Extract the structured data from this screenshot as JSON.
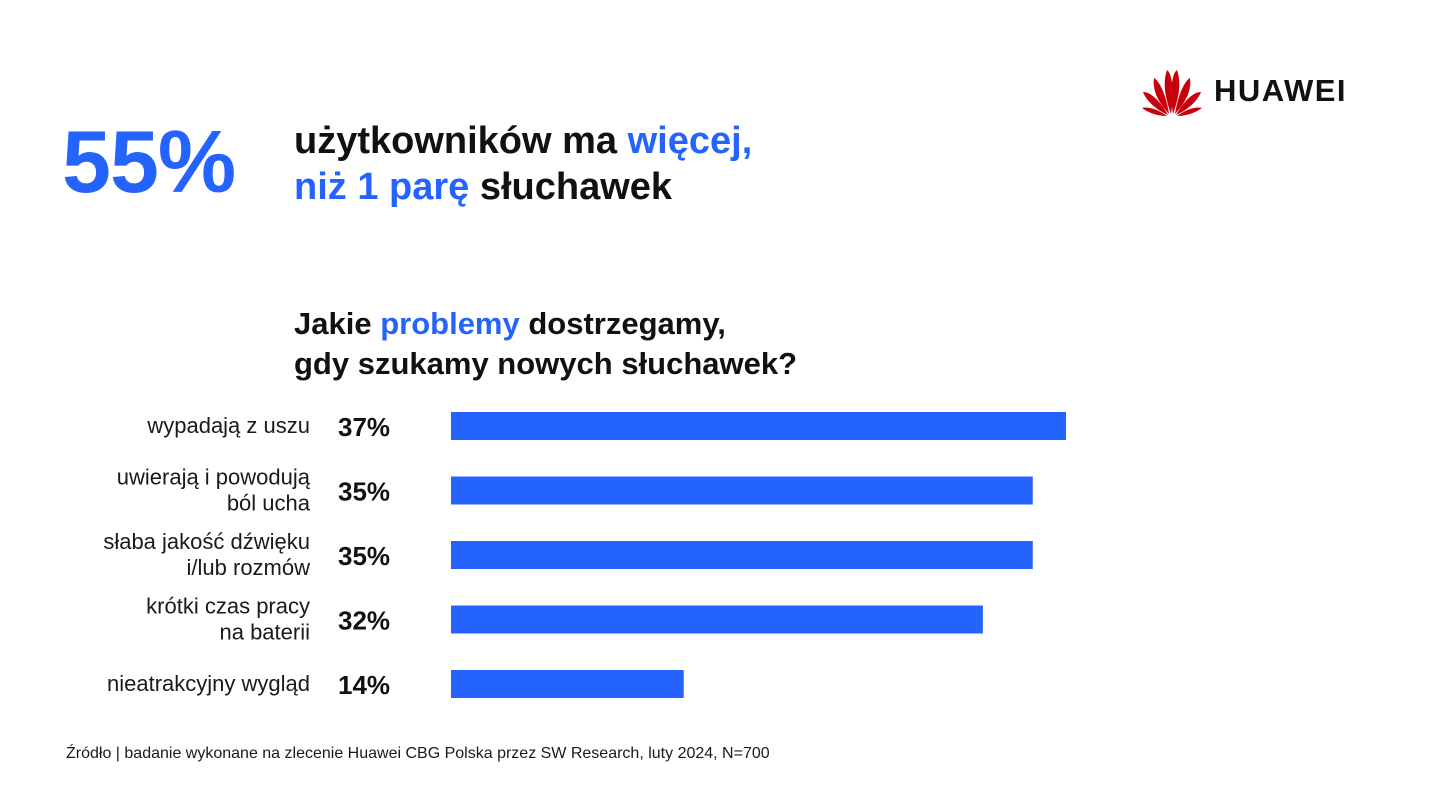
{
  "brand": {
    "name": "HUAWEI",
    "logo_color": "#c7000b"
  },
  "colors": {
    "accent": "#2563ff",
    "text": "#111111"
  },
  "headline": {
    "stat": "55%",
    "line1_part1": "użytkowników ma ",
    "line1_part2": "więcej,",
    "line2_part1": "niż 1 parę",
    "line2_part2": " słuchawek"
  },
  "question": {
    "line1_part1": "Jakie ",
    "line1_part2": "problemy",
    "line1_part3": " dostrzegamy,",
    "line2": "gdy szukamy nowych słuchawek?"
  },
  "chart_data": {
    "type": "bar",
    "orientation": "horizontal",
    "categories": [
      [
        "wypadają z uszu"
      ],
      [
        "uwierają i powodują",
        "ból ucha"
      ],
      [
        "słaba jakość dźwięku",
        "i/lub rozmów"
      ],
      [
        "krótki czas pracy",
        "na baterii"
      ],
      [
        "nieatrakcyjny wygląd"
      ]
    ],
    "values": [
      37,
      35,
      35,
      32,
      14
    ],
    "value_labels": [
      "37%",
      "35%",
      "35%",
      "32%",
      "14%"
    ],
    "unit": "%",
    "bar_color": "#2563ff",
    "grid": false,
    "legend": "none"
  },
  "footer": {
    "source": "Źródło | badanie wykonane na zlecenie Huawei CBG Polska przez SW Research, luty 2024, N=700"
  }
}
